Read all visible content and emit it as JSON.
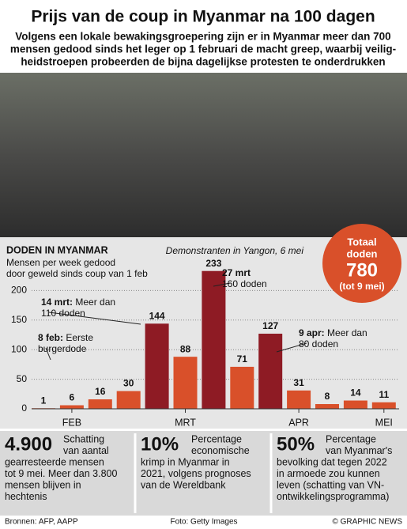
{
  "chart_data": {
    "type": "bar",
    "title": "Prijs van de coup in Myanmar na 100 dagen",
    "subtitle": [
      "Volgens een lokale bewakingsgroepering zijn er in Myanmar meer dan 700",
      "mensen gedood sinds het leger op 1 februari de macht greep, waarbij veilig-",
      "heidstroepen probeerden de bijna dagelijkse protesten te onderdrukken"
    ],
    "photo_caption": "Demonstranten in Yangon, 6 mei",
    "chart_title": "DODEN IN MYANMAR",
    "chart_subtitle": [
      "Mensen per week gedood",
      "door geweld sinds coup van 1 feb"
    ],
    "categories": [
      null,
      "FEB",
      null,
      null,
      null,
      "MRT",
      null,
      null,
      null,
      "APR",
      null,
      null,
      "MEI"
    ],
    "values": [
      1,
      6,
      16,
      30,
      144,
      88,
      233,
      71,
      127,
      31,
      8,
      14,
      11
    ],
    "colors": [
      "#d9502a",
      "#d9502a",
      "#d9502a",
      "#d9502a",
      "#8e1b24",
      "#d9502a",
      "#8e1b24",
      "#d9502a",
      "#8e1b24",
      "#d9502a",
      "#d9502a",
      "#d9502a",
      "#d9502a"
    ],
    "ylim": [
      0,
      250
    ],
    "yticks": [
      0,
      50,
      100,
      150,
      200
    ],
    "grid": true,
    "annotations": [
      {
        "date": "8 feb:",
        "lines": [
          " Eerste",
          "burgerdode"
        ]
      },
      {
        "date": "14 mrt:",
        "lines": [
          " Meer dan",
          "110 doden"
        ]
      },
      {
        "date": "27 mrt",
        "lines": [
          "",
          "160 doden"
        ]
      },
      {
        "date": "9 apr:",
        "lines": [
          " Meer dan",
          "80 doden"
        ]
      }
    ],
    "total": {
      "label": [
        "Totaal",
        "doden"
      ],
      "value": 780,
      "note": "(tot 9 mei)"
    },
    "stats": [
      {
        "figure": "4.900",
        "lines": [
          "Schatting",
          "van aantal",
          "gearresteerde mensen",
          "tot 9 mei. Meer dan 3.800",
          "mensen blijven in",
          "hechtenis"
        ]
      },
      {
        "figure": "10%",
        "lines": [
          "Percentage",
          "economische",
          "krimp in Myanmar in",
          "2021, volgens prognoses",
          "van de  Wereldbank"
        ]
      },
      {
        "figure": "50%",
        "lines": [
          "Percentage",
          "van Myanmar's",
          "bevolking dat tegen 2022",
          "in armoede zou kunnen",
          "leven (schatting van VN-",
          "ontwikkelingsprogramma)"
        ]
      }
    ],
    "sources": "Bronnen: AFP, AAPP",
    "photo_credit": "Foto: Getty Images",
    "copyright": "© GRAPHIC NEWS"
  }
}
